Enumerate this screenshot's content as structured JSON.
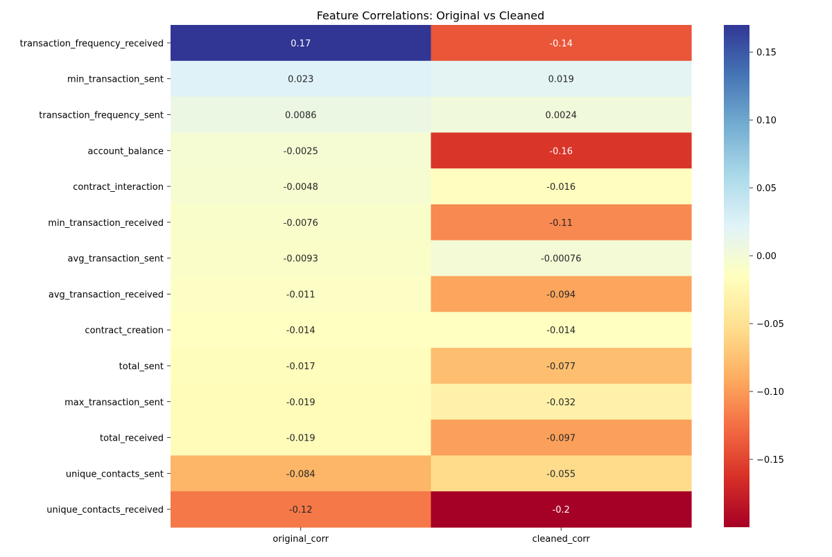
{
  "chart_data": {
    "type": "heatmap",
    "title": "Feature Correlations: Original vs Cleaned",
    "rows": [
      "transaction_frequency_received",
      "min_transaction_sent",
      "transaction_frequency_sent",
      "account_balance",
      "contract_interaction",
      "min_transaction_received",
      "avg_transaction_sent",
      "avg_transaction_received",
      "contract_creation",
      "total_sent",
      "max_transaction_sent",
      "total_received",
      "unique_contacts_sent",
      "unique_contacts_received"
    ],
    "columns": [
      "original_corr",
      "cleaned_corr"
    ],
    "values": [
      [
        0.17,
        -0.14
      ],
      [
        0.023,
        0.019
      ],
      [
        0.0086,
        0.0024
      ],
      [
        -0.0025,
        -0.16
      ],
      [
        -0.0048,
        -0.016
      ],
      [
        -0.0076,
        -0.11
      ],
      [
        -0.0093,
        -0.00076
      ],
      [
        -0.011,
        -0.094
      ],
      [
        -0.014,
        -0.014
      ],
      [
        -0.017,
        -0.077
      ],
      [
        -0.019,
        -0.032
      ],
      [
        -0.019,
        -0.097
      ],
      [
        -0.084,
        -0.055
      ],
      [
        -0.12,
        -0.2
      ]
    ],
    "annotations": [
      [
        "0.17",
        "-0.14"
      ],
      [
        "0.023",
        "0.019"
      ],
      [
        "0.0086",
        "0.0024"
      ],
      [
        "-0.0025",
        "-0.16"
      ],
      [
        "-0.0048",
        "-0.016"
      ],
      [
        "-0.0076",
        "-0.11"
      ],
      [
        "-0.0093",
        "-0.00076"
      ],
      [
        "-0.011",
        "-0.094"
      ],
      [
        "-0.014",
        "-0.014"
      ],
      [
        "-0.017",
        "-0.077"
      ],
      [
        "-0.019",
        "-0.032"
      ],
      [
        "-0.019",
        "-0.097"
      ],
      [
        "-0.084",
        "-0.055"
      ],
      [
        "-0.12",
        "-0.2"
      ]
    ],
    "colorbar": {
      "colormap": "RdYlBu",
      "vmin": -0.2,
      "vmax": 0.17,
      "ticks": [
        0.15,
        0.1,
        0.05,
        0.0,
        -0.05,
        -0.1,
        -0.15
      ],
      "tick_labels": [
        "0.15",
        "0.10",
        "0.05",
        "0.00",
        "−0.05",
        "−0.10",
        "−0.15"
      ]
    }
  }
}
